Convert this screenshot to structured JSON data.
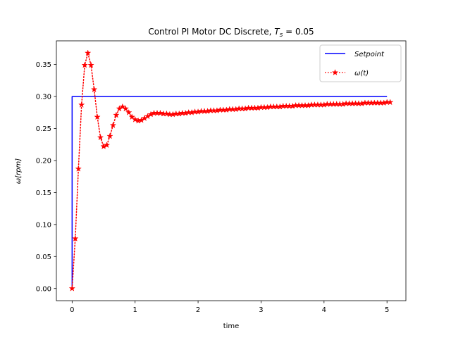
{
  "chart_data": {
    "type": "line",
    "title": "Control PI Motor DC Discrete, T_s = 0.05",
    "title_main": "Control PI Motor DC Discrete, ",
    "title_symbol": "T",
    "title_subscript": "s",
    "title_equals": " = 0.05",
    "xlabel": "time",
    "ylabel": "ω[rpm]",
    "xlim": [
      -0.25,
      5.3
    ],
    "ylim": [
      -0.019,
      0.387
    ],
    "x_ticks": [
      0,
      1,
      2,
      3,
      4,
      5
    ],
    "y_ticks": [
      0.0,
      0.05,
      0.1,
      0.15,
      0.2,
      0.25,
      0.3,
      0.35
    ],
    "x_tick_labels": [
      "0",
      "1",
      "2",
      "3",
      "4",
      "5"
    ],
    "y_tick_labels": [
      "0.00",
      "0.05",
      "0.10",
      "0.15",
      "0.20",
      "0.25",
      "0.30",
      "0.35"
    ],
    "grid": false,
    "legend_position": "top-right",
    "series": [
      {
        "name": "Setpoint",
        "color": "#0000ff",
        "style": "solid",
        "marker": "none",
        "x": [
          0,
          0,
          5.0
        ],
        "y": [
          0,
          0.3,
          0.3
        ]
      },
      {
        "name": "ω(t)",
        "color": "#ff0000",
        "style": "dotted",
        "marker": "star",
        "x": [
          0.0,
          0.05,
          0.1,
          0.15,
          0.2,
          0.25,
          0.3,
          0.35,
          0.4,
          0.45,
          0.5,
          0.55,
          0.6,
          0.65,
          0.7,
          0.75,
          0.8,
          0.85,
          0.9,
          0.95,
          1.0,
          1.05,
          1.1,
          1.15,
          1.2,
          1.25,
          1.3,
          1.35,
          1.4,
          1.45,
          1.5,
          1.55,
          1.6,
          1.65,
          1.7,
          1.75,
          1.8,
          1.85,
          1.9,
          1.95,
          2.0,
          2.05,
          2.1,
          2.15,
          2.2,
          2.25,
          2.3,
          2.35,
          2.4,
          2.45,
          2.5,
          2.55,
          2.6,
          2.65,
          2.7,
          2.75,
          2.8,
          2.85,
          2.9,
          2.95,
          3.0,
          3.05,
          3.1,
          3.15,
          3.2,
          3.25,
          3.3,
          3.35,
          3.4,
          3.45,
          3.5,
          3.55,
          3.6,
          3.65,
          3.7,
          3.75,
          3.8,
          3.85,
          3.9,
          3.95,
          4.0,
          4.05,
          4.1,
          4.15,
          4.2,
          4.25,
          4.3,
          4.35,
          4.4,
          4.45,
          4.5,
          4.55,
          4.6,
          4.65,
          4.7,
          4.75,
          4.8,
          4.85,
          4.9,
          4.95,
          5.0,
          5.05
        ],
        "y": [
          0.0,
          0.078,
          0.187,
          0.287,
          0.349,
          0.368,
          0.349,
          0.311,
          0.268,
          0.236,
          0.222,
          0.224,
          0.238,
          0.255,
          0.271,
          0.281,
          0.284,
          0.281,
          0.275,
          0.268,
          0.264,
          0.262,
          0.263,
          0.266,
          0.269,
          0.272,
          0.274,
          0.274,
          0.274,
          0.273,
          0.273,
          0.272,
          0.272,
          0.273,
          0.273,
          0.274,
          0.274,
          0.275,
          0.275,
          0.276,
          0.276,
          0.277,
          0.277,
          0.277,
          0.278,
          0.278,
          0.278,
          0.279,
          0.279,
          0.279,
          0.28,
          0.28,
          0.28,
          0.281,
          0.281,
          0.281,
          0.282,
          0.282,
          0.282,
          0.282,
          0.283,
          0.283,
          0.283,
          0.284,
          0.284,
          0.284,
          0.284,
          0.285,
          0.285,
          0.285,
          0.285,
          0.286,
          0.286,
          0.286,
          0.286,
          0.286,
          0.287,
          0.287,
          0.287,
          0.287,
          0.287,
          0.288,
          0.288,
          0.288,
          0.288,
          0.288,
          0.288,
          0.289,
          0.289,
          0.289,
          0.289,
          0.289,
          0.289,
          0.29,
          0.29,
          0.29,
          0.29,
          0.29,
          0.29,
          0.29,
          0.291,
          0.291
        ]
      }
    ]
  }
}
